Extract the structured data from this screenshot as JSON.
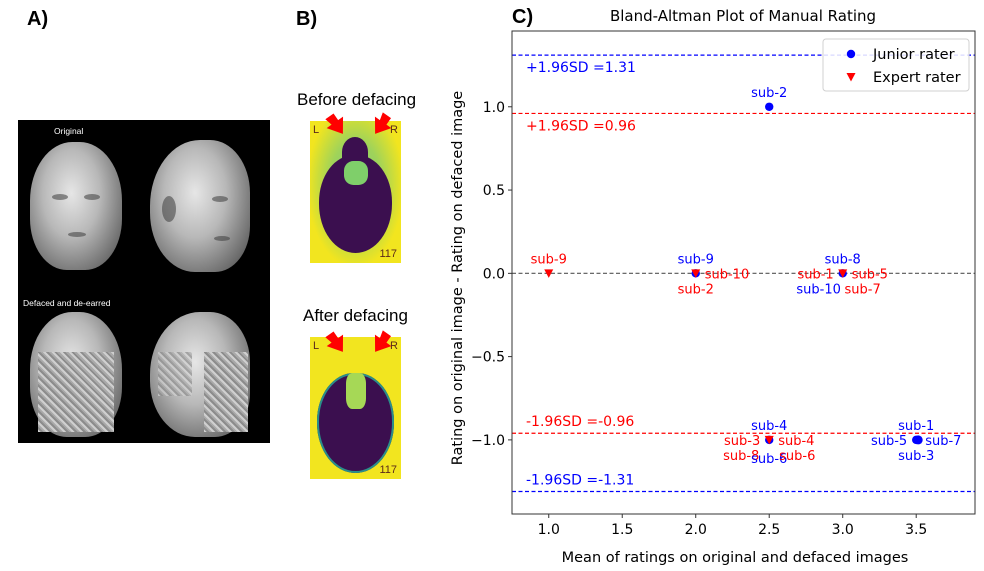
{
  "panels": {
    "a": {
      "label": "A)",
      "caption_top": "Original",
      "caption_bottom": "Defaced and de-earred"
    },
    "b": {
      "label": "B)",
      "before_title": "Before defacing",
      "after_title": "After defacing",
      "left_marker": "L",
      "right_marker": "R",
      "slice_number": "117"
    },
    "c": {
      "label": "C)"
    }
  },
  "chart_data": {
    "type": "scatter",
    "title": "Bland-Altman Plot of Manual Rating",
    "xlabel": "Mean of ratings on original and defaced images",
    "ylabel": "Rating on original image - Rating on defaced image",
    "xlim": [
      0.75,
      3.9
    ],
    "ylim": [
      -1.445,
      1.455
    ],
    "xticks": [
      1.0,
      1.5,
      2.0,
      2.5,
      3.0,
      3.5
    ],
    "xtick_labels": [
      "1.0",
      "1.5",
      "2.0",
      "2.5",
      "3.0",
      "3.5"
    ],
    "yticks": [
      1.0,
      0.5,
      0.0,
      -0.5,
      -1.0
    ],
    "ytick_labels": [
      "1.0",
      "0.5",
      "0.0",
      "−0.5",
      "−1.0"
    ],
    "grid": false,
    "legend": {
      "placement": "top-right",
      "entries": [
        {
          "name": "Junior rater",
          "marker": "circle",
          "color": "#0000ff"
        },
        {
          "name": "Expert rater",
          "marker": "triangle-down",
          "color": "#ff0000"
        }
      ]
    },
    "reference_lines": [
      {
        "y": 1.31,
        "color": "#0000ff",
        "label": "+1.96SD =1.31",
        "label_pos": "below"
      },
      {
        "y": 0.96,
        "color": "#ff0000",
        "label": "+1.96SD =0.96",
        "label_pos": "below"
      },
      {
        "y": 0.0,
        "color": "#555555",
        "label": "",
        "label_pos": "none"
      },
      {
        "y": -0.96,
        "color": "#ff0000",
        "label": "-1.96SD =-0.96",
        "label_pos": "above"
      },
      {
        "y": -1.31,
        "color": "#0000ff",
        "label": "-1.96SD =-1.31",
        "label_pos": "above"
      }
    ],
    "series": [
      {
        "name": "Junior rater",
        "color": "#0000ff",
        "marker": "circle",
        "points": [
          {
            "x": 2.5,
            "y": 1.0
          },
          {
            "x": 2.0,
            "y": 0.0
          },
          {
            "x": 3.0,
            "y": 0.0
          },
          {
            "x": 2.5,
            "y": -1.0
          },
          {
            "x": 3.5,
            "y": -1.0
          }
        ]
      },
      {
        "name": "Expert rater",
        "color": "#ff0000",
        "marker": "triangle-down",
        "points": [
          {
            "x": 1.0,
            "y": 0.0
          },
          {
            "x": 2.0,
            "y": 0.0
          },
          {
            "x": 3.0,
            "y": 0.0
          },
          {
            "x": 2.5,
            "y": -1.0
          }
        ]
      }
    ],
    "annotations": [
      {
        "text": "sub-2",
        "x": 2.5,
        "y": 1.0,
        "color": "#0000ff",
        "anchor": "middle",
        "dx": 0,
        "dy": -1
      },
      {
        "text": "sub-9",
        "x": 1.0,
        "y": 0.0,
        "color": "#ff0000",
        "anchor": "middle",
        "dx": 0,
        "dy": -1
      },
      {
        "text": "sub-9",
        "x": 2.0,
        "y": 0.0,
        "color": "#0000ff",
        "anchor": "middle",
        "dx": 0,
        "dy": -1
      },
      {
        "text": "sub-10",
        "x": 2.0,
        "y": 0.0,
        "color": "#ff0000",
        "anchor": "start",
        "dx": 1,
        "dy": 0
      },
      {
        "text": "sub-2",
        "x": 2.0,
        "y": 0.0,
        "color": "#ff0000",
        "anchor": "middle",
        "dx": 0,
        "dy": 1
      },
      {
        "text": "sub-8",
        "x": 3.0,
        "y": 0.0,
        "color": "#0000ff",
        "anchor": "middle",
        "dx": 0,
        "dy": -1
      },
      {
        "text": "sub-1",
        "x": 3.0,
        "y": 0.0,
        "color": "#ff0000",
        "anchor": "end",
        "dx": -1,
        "dy": 0
      },
      {
        "text": "sub-5",
        "x": 3.0,
        "y": 0.0,
        "color": "#ff0000",
        "anchor": "start",
        "dx": 1,
        "dy": 0
      },
      {
        "text": "sub-10",
        "x": 3.0,
        "y": 0.0,
        "color": "#0000ff",
        "anchor": "end",
        "dx": -0.2,
        "dy": 1
      },
      {
        "text": "sub-7",
        "x": 3.0,
        "y": 0.0,
        "color": "#ff0000",
        "anchor": "start",
        "dx": 0.2,
        "dy": 1
      },
      {
        "text": "sub-4",
        "x": 2.5,
        "y": -1.0,
        "color": "#0000ff",
        "anchor": "middle",
        "dx": 0,
        "dy": -1
      },
      {
        "text": "sub-3",
        "x": 2.5,
        "y": -1.0,
        "color": "#ff0000",
        "anchor": "end",
        "dx": -1,
        "dy": 0
      },
      {
        "text": "sub-4",
        "x": 2.5,
        "y": -1.0,
        "color": "#ff0000",
        "anchor": "start",
        "dx": 1,
        "dy": 0
      },
      {
        "text": "sub-8",
        "x": 2.5,
        "y": -1.0,
        "color": "#ff0000",
        "anchor": "end",
        "dx": -1.1,
        "dy": 1
      },
      {
        "text": "sub-6",
        "x": 2.5,
        "y": -1.0,
        "color": "#0000ff",
        "anchor": "middle",
        "dx": 0,
        "dy": 1.2
      },
      {
        "text": "sub-6",
        "x": 2.5,
        "y": -1.0,
        "color": "#ff0000",
        "anchor": "start",
        "dx": 1.1,
        "dy": 1
      },
      {
        "text": "sub-1",
        "x": 3.5,
        "y": -1.0,
        "color": "#0000ff",
        "anchor": "middle",
        "dx": 0,
        "dy": -1
      },
      {
        "text": "sub-5",
        "x": 3.5,
        "y": -1.0,
        "color": "#0000ff",
        "anchor": "end",
        "dx": -1,
        "dy": 0
      },
      {
        "text": "sub-7",
        "x": 3.5,
        "y": -1.0,
        "color": "#0000ff",
        "anchor": "start",
        "dx": 1,
        "dy": 0
      },
      {
        "text": "sub-3",
        "x": 3.5,
        "y": -1.0,
        "color": "#0000ff",
        "anchor": "middle",
        "dx": 0,
        "dy": 1
      }
    ]
  }
}
